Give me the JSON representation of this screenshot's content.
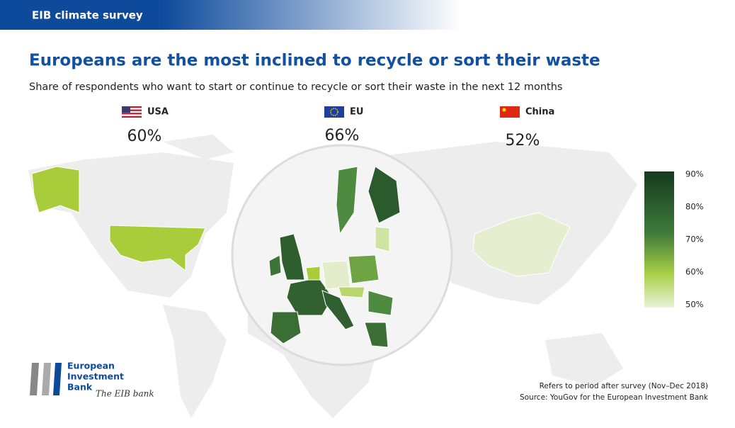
{
  "header": {
    "label": "EIB climate survey"
  },
  "title": "Europeans are the most inclined to recycle or sort their waste",
  "subtitle": "Share of respondents who want to start or continue to recycle or sort their waste in the next 12 months",
  "regions": [
    {
      "name": "USA",
      "value": "60%"
    },
    {
      "name": "EU",
      "value": "66%"
    },
    {
      "name": "China",
      "value": "52%"
    }
  ],
  "legend": {
    "ticks": [
      "90%",
      "80%",
      "70%",
      "60%",
      "50%"
    ]
  },
  "logo": {
    "lines": [
      "European",
      "Investment",
      "Bank"
    ],
    "tagline": "The EIB bank"
  },
  "notes": [
    "Refers to period after survey (Nov–Dec 2018)",
    "Source: YouGov for the European Investment Bank"
  ]
}
